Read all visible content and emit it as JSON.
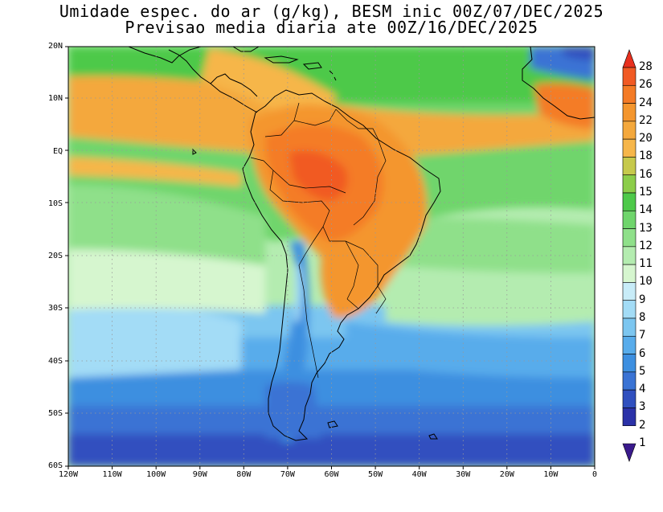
{
  "title_line1": "Umidade espec. do ar (g/kg), BESM inic 00Z/07/DEC/2025",
  "title_line2": "Previsao media diaria ate 00Z/16/DEC/2025",
  "lat_labels": [
    "20N",
    "10N",
    "EQ",
    "10S",
    "20S",
    "30S",
    "40S",
    "50S",
    "60S"
  ],
  "lon_labels": [
    "120W",
    "110W",
    "100W",
    "90W",
    "80W",
    "70W",
    "60W",
    "50W",
    "40W",
    "30W",
    "20W",
    "10W",
    "0"
  ],
  "colorbar": {
    "levels": [
      "28",
      "26",
      "24",
      "22",
      "20",
      "18",
      "16",
      "15",
      "14",
      "13",
      "12",
      "11",
      "10",
      "9",
      "8",
      "7",
      "6",
      "5",
      "4",
      "3",
      "2",
      "1"
    ],
    "colors": [
      "#e8301e",
      "#f15a24",
      "#f47b26",
      "#f4962e",
      "#f4a83c",
      "#f6b64a",
      "#c6c94c",
      "#8ccd4a",
      "#4ec94a",
      "#6fd56c",
      "#8fe08a",
      "#b4ecb0",
      "#d6f6cf",
      "#c8ecf8",
      "#a3dcf6",
      "#7cc6f0",
      "#58aceb",
      "#3d8fe0",
      "#3a73d4",
      "#3050bf",
      "#2b32a8",
      "#3a1a8c"
    ]
  },
  "map": {
    "extent": {
      "lon": [
        -120,
        0
      ],
      "lat": [
        -60,
        20
      ]
    },
    "field": "specific humidity (g/kg)"
  }
}
